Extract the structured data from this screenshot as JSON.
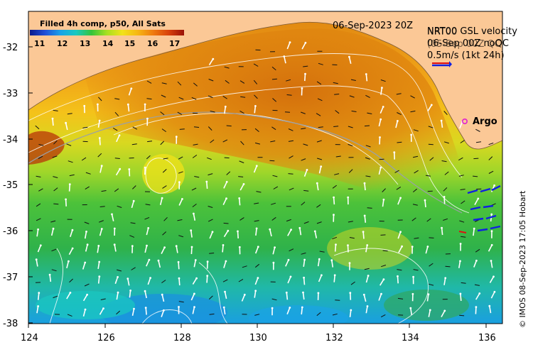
{
  "map": {
    "colorbar_title": "Filled 4h comp, p50, All Sats",
    "colorbar_ticks": [
      "11",
      "12",
      "13",
      "14",
      "15",
      "16",
      "17"
    ],
    "colorbar_colors": [
      "#0a1a8c",
      "#1f4fd8",
      "#1aa3e8",
      "#19c9c0",
      "#35c43a",
      "#a8e020",
      "#f2e21a",
      "#f6b614",
      "#ef7a10",
      "#d8420a",
      "#9a1208"
    ],
    "date_label": "06-Sep-2023 20Z",
    "velocity_label_line1": "NRT00 GSL velocity",
    "velocity_label_line2": "06-Sep 00Z noQC",
    "velocity_overlay_line1": "NRT00",
    "velocity_overlay_line2": "(05-Sep 00Z QC",
    "velocity_scale": "0.5m/s (1kt 24h)",
    "argo_label": "Argo",
    "credit": "© IMOS 08-Sep-2023 17:05 Hobart",
    "y_ticks": [
      "-32",
      "-33",
      "-34",
      "-35",
      "-36",
      "-37",
      "-38"
    ],
    "x_ticks": [
      "124",
      "126",
      "128",
      "130",
      "132",
      "134",
      "136"
    ],
    "land_color": "#fbc896",
    "sea_warm_color": "#e07c0c",
    "sea_cool_color": "#2fb24a"
  }
}
